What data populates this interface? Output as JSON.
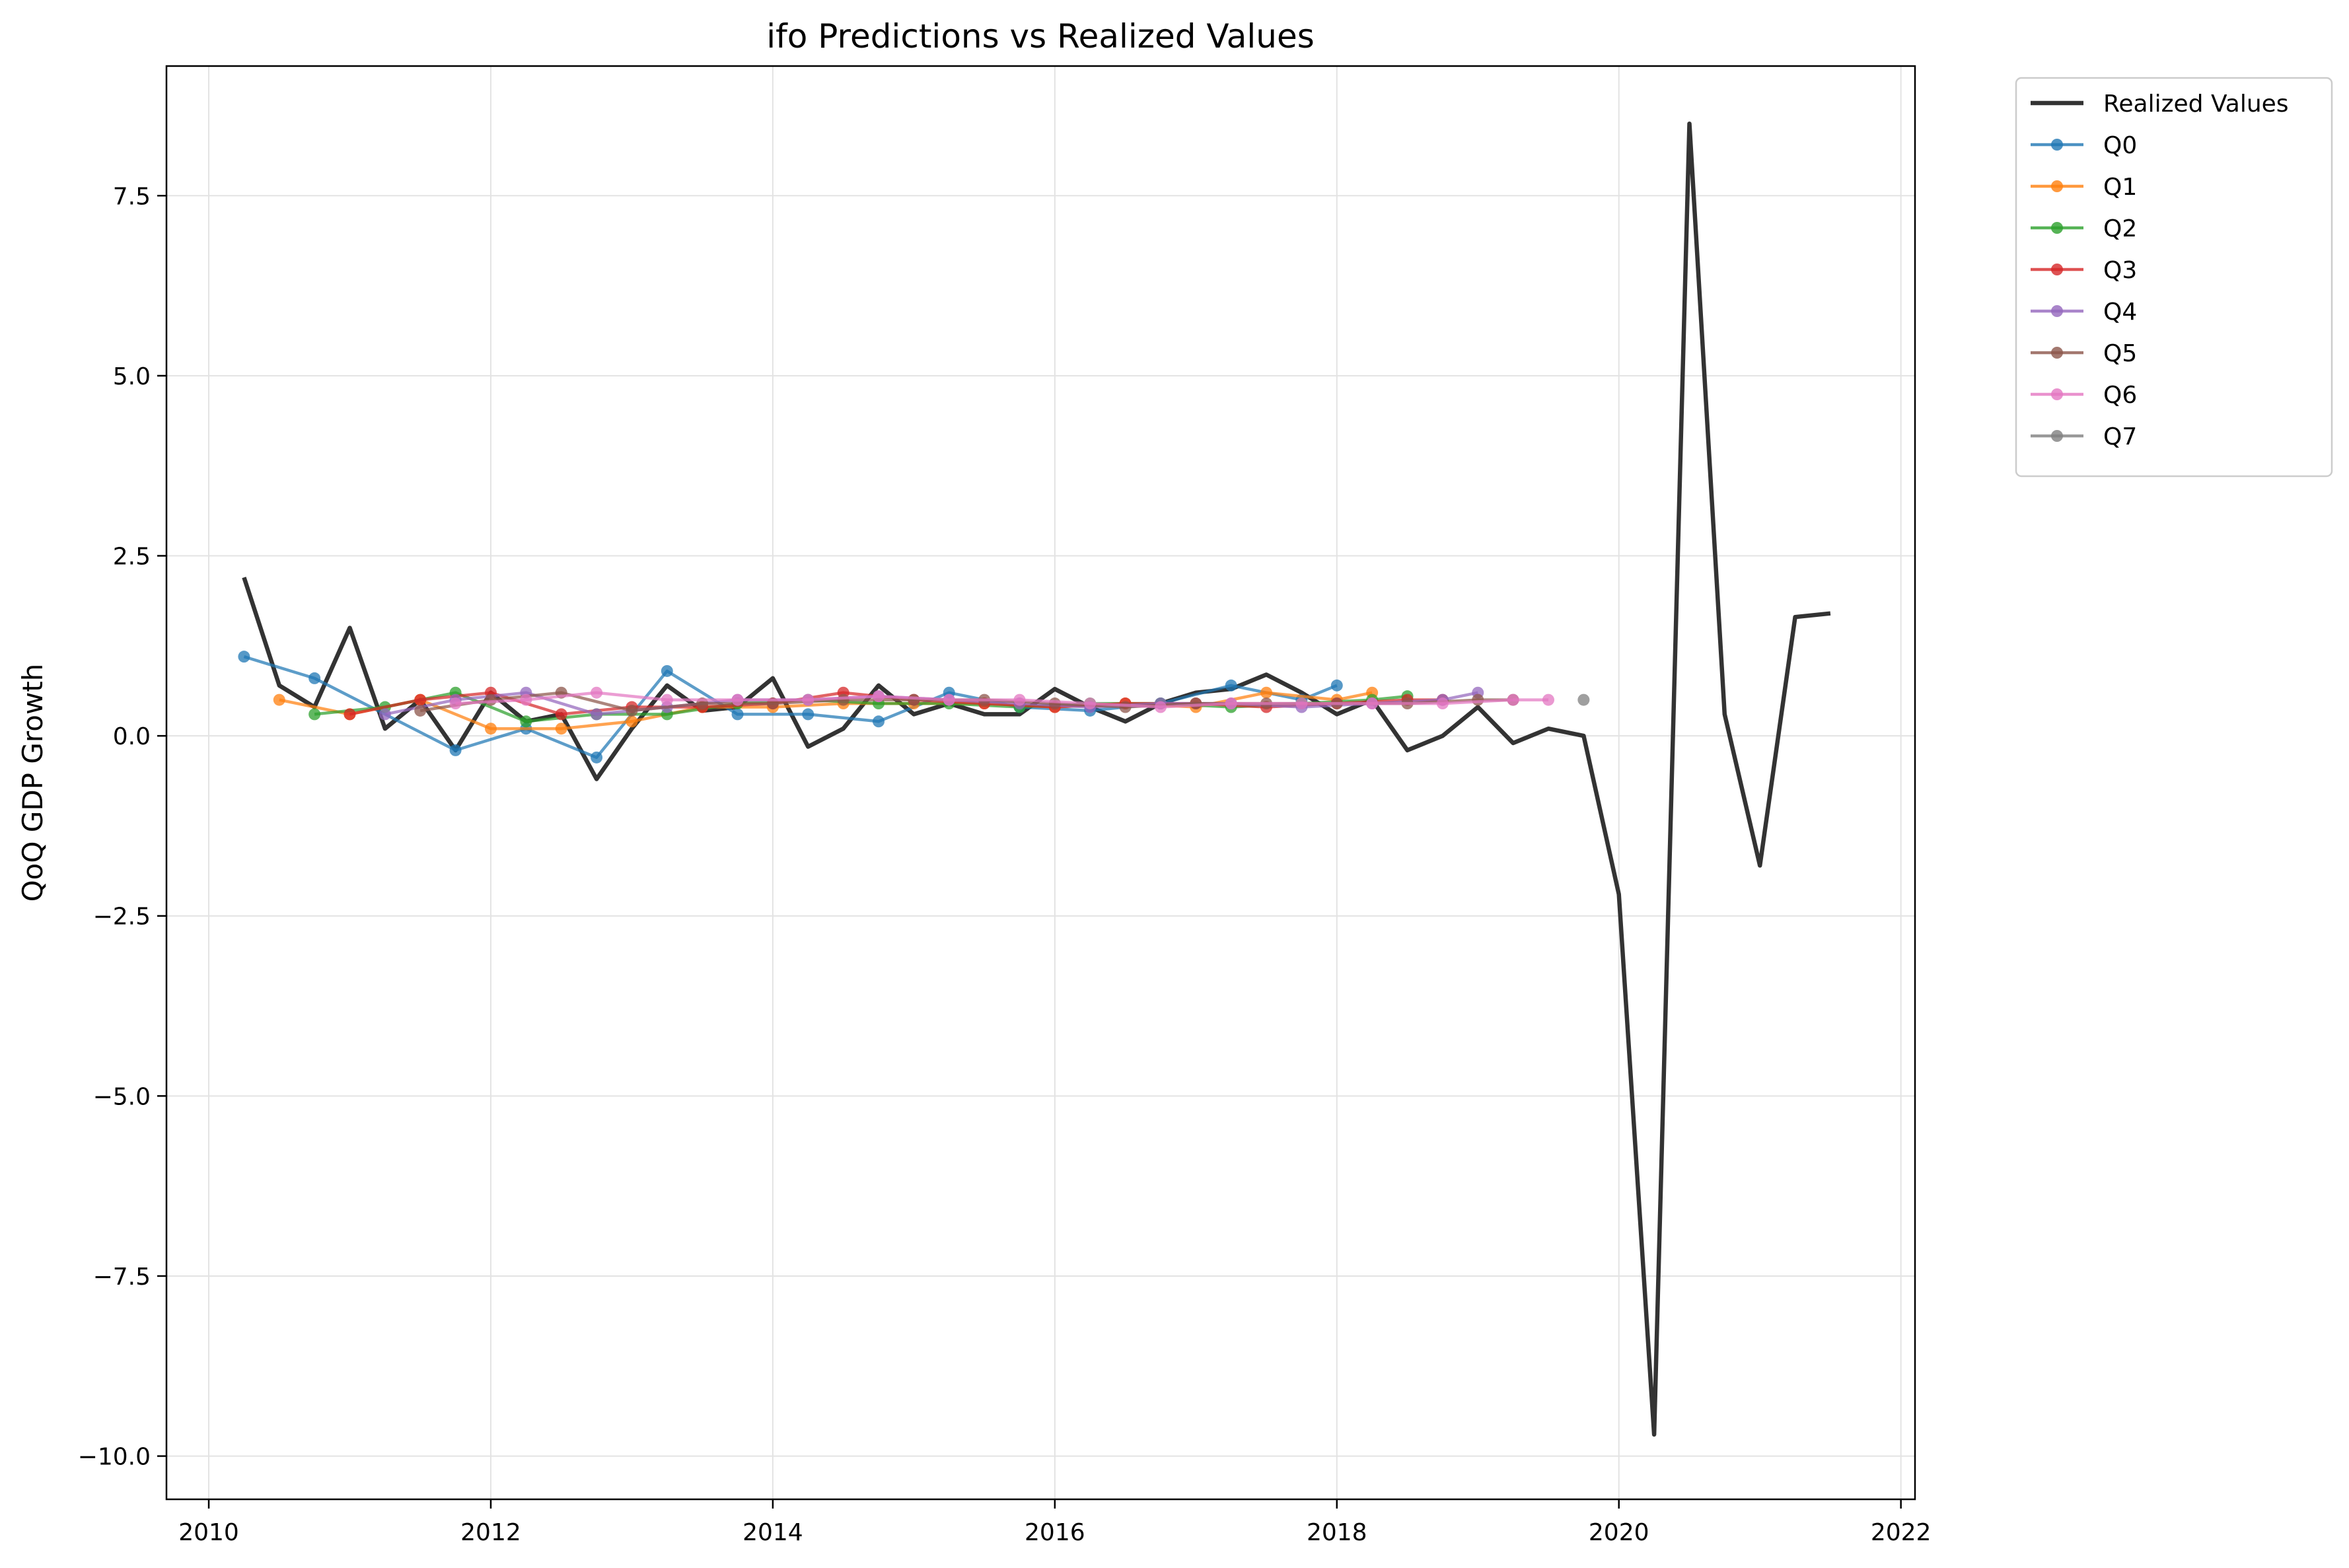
{
  "chart_data": {
    "type": "line",
    "title": "ifo Predictions vs Realized Values",
    "xlabel": "",
    "ylabel": "QoQ GDP Growth",
    "xlim": [
      2009.7,
      2022.1
    ],
    "ylim": [
      -10.6,
      9.3
    ],
    "x_ticks": [
      2010,
      2012,
      2014,
      2016,
      2018,
      2020,
      2022
    ],
    "y_ticks": [
      -10.0,
      -7.5,
      -5.0,
      -2.5,
      0.0,
      2.5,
      5.0,
      7.5
    ],
    "x_tick_labels": [
      "2010",
      "2012",
      "2014",
      "2016",
      "2018",
      "2020",
      "2022"
    ],
    "y_tick_labels": [
      "−10.0",
      "−7.5",
      "−5.0",
      "−2.5",
      "0.0",
      "2.5",
      "5.0",
      "7.5"
    ],
    "grid": true,
    "legend_position": "outside-top-right",
    "series": [
      {
        "name": "Realized Values",
        "color": "#333333",
        "markers": false,
        "x": [
          2010.25,
          2010.5,
          2010.75,
          2011.0,
          2011.25,
          2011.5,
          2011.75,
          2012.0,
          2012.25,
          2012.5,
          2012.75,
          2013.0,
          2013.25,
          2013.5,
          2013.75,
          2014.0,
          2014.25,
          2014.5,
          2014.75,
          2015.0,
          2015.25,
          2015.5,
          2015.75,
          2016.0,
          2016.25,
          2016.5,
          2016.75,
          2017.0,
          2017.25,
          2017.5,
          2017.75,
          2018.0,
          2018.25,
          2018.5,
          2018.75,
          2019.0,
          2019.25,
          2019.5,
          2019.75,
          2020.0,
          2020.25,
          2020.5,
          2020.75,
          2021.0,
          2021.25,
          2021.5
        ],
        "y": [
          2.2,
          0.7,
          0.4,
          1.5,
          0.1,
          0.5,
          -0.2,
          0.6,
          0.2,
          0.3,
          -0.6,
          0.1,
          0.7,
          0.35,
          0.4,
          0.8,
          -0.15,
          0.1,
          0.7,
          0.3,
          0.45,
          0.3,
          0.3,
          0.65,
          0.4,
          0.2,
          0.45,
          0.6,
          0.65,
          0.85,
          0.6,
          0.3,
          0.5,
          -0.2,
          0.0,
          0.4,
          -0.1,
          0.1,
          0.0,
          -2.2,
          -9.7,
          8.5,
          0.3,
          -1.8,
          1.65,
          1.7
        ]
      },
      {
        "name": "Q0",
        "color": "#1f77b4",
        "markers": true,
        "x": [
          2010.25,
          2010.75,
          2011.75,
          2012.25,
          2012.75,
          2013.25,
          2013.75,
          2014.25,
          2014.75,
          2015.25,
          2015.75,
          2016.25,
          2016.75,
          2017.25,
          2017.75,
          2018.0
        ],
        "y": [
          1.1,
          0.8,
          -0.2,
          0.1,
          -0.3,
          0.9,
          0.3,
          0.3,
          0.2,
          0.6,
          0.4,
          0.35,
          0.45,
          0.7,
          0.5,
          0.7
        ]
      },
      {
        "name": "Q1",
        "color": "#ff7f0e",
        "markers": true,
        "x": [
          2010.5,
          2011.0,
          2011.5,
          2012.0,
          2012.5,
          2013.0,
          2013.5,
          2014.0,
          2014.5,
          2015.0,
          2015.5,
          2016.0,
          2016.5,
          2017.0,
          2017.5,
          2018.0,
          2018.25
        ],
        "y": [
          0.5,
          0.3,
          0.5,
          0.1,
          0.1,
          0.2,
          0.4,
          0.4,
          0.45,
          0.45,
          0.45,
          0.4,
          0.45,
          0.4,
          0.6,
          0.5,
          0.6
        ]
      },
      {
        "name": "Q2",
        "color": "#2ca02c",
        "markers": true,
        "x": [
          2010.75,
          2011.25,
          2011.75,
          2012.25,
          2012.75,
          2013.25,
          2013.75,
          2014.25,
          2014.75,
          2015.25,
          2015.75,
          2016.25,
          2016.75,
          2017.25,
          2017.75,
          2018.25,
          2018.5
        ],
        "y": [
          0.3,
          0.4,
          0.6,
          0.2,
          0.3,
          0.3,
          0.45,
          0.5,
          0.45,
          0.45,
          0.4,
          0.45,
          0.45,
          0.4,
          0.45,
          0.5,
          0.55
        ]
      },
      {
        "name": "Q3",
        "color": "#d62728",
        "markers": true,
        "x": [
          2011.0,
          2011.5,
          2012.0,
          2012.5,
          2013.0,
          2013.5,
          2014.0,
          2014.5,
          2015.0,
          2015.5,
          2016.0,
          2016.5,
          2017.0,
          2017.5,
          2018.0,
          2018.5,
          2018.75
        ],
        "y": [
          0.3,
          0.5,
          0.6,
          0.3,
          0.4,
          0.4,
          0.45,
          0.6,
          0.5,
          0.45,
          0.4,
          0.45,
          0.45,
          0.4,
          0.45,
          0.5,
          0.5
        ]
      },
      {
        "name": "Q4",
        "color": "#9467bd",
        "markers": true,
        "x": [
          2011.25,
          2011.75,
          2012.25,
          2012.75,
          2013.25,
          2013.75,
          2014.25,
          2014.75,
          2015.25,
          2015.75,
          2016.25,
          2016.75,
          2017.25,
          2017.75,
          2018.25,
          2018.75,
          2019.0
        ],
        "y": [
          0.3,
          0.5,
          0.6,
          0.3,
          0.4,
          0.5,
          0.5,
          0.55,
          0.5,
          0.45,
          0.4,
          0.45,
          0.45,
          0.4,
          0.45,
          0.5,
          0.6
        ]
      },
      {
        "name": "Q5",
        "color": "#8c564b",
        "markers": true,
        "x": [
          2011.5,
          2012.0,
          2012.5,
          2013.0,
          2013.5,
          2014.0,
          2014.5,
          2015.0,
          2015.5,
          2016.0,
          2016.5,
          2017.0,
          2017.5,
          2018.0,
          2018.5,
          2019.0,
          2019.25
        ],
        "y": [
          0.35,
          0.5,
          0.6,
          0.35,
          0.45,
          0.45,
          0.5,
          0.5,
          0.5,
          0.45,
          0.4,
          0.45,
          0.45,
          0.45,
          0.45,
          0.5,
          0.5
        ]
      },
      {
        "name": "Q6",
        "color": "#e377c2",
        "markers": true,
        "x": [
          2011.75,
          2012.25,
          2012.75,
          2013.25,
          2013.75,
          2014.25,
          2014.75,
          2015.25,
          2015.75,
          2016.25,
          2016.75,
          2017.25,
          2017.75,
          2018.25,
          2018.75,
          2019.25,
          2019.5
        ],
        "y": [
          0.45,
          0.5,
          0.6,
          0.5,
          0.5,
          0.5,
          0.55,
          0.5,
          0.5,
          0.45,
          0.4,
          0.45,
          0.45,
          0.45,
          0.45,
          0.5,
          0.5
        ]
      },
      {
        "name": "Q7",
        "color": "#7f7f7f",
        "markers": true,
        "x": [
          2019.75
        ],
        "y": [
          0.5
        ]
      }
    ]
  }
}
